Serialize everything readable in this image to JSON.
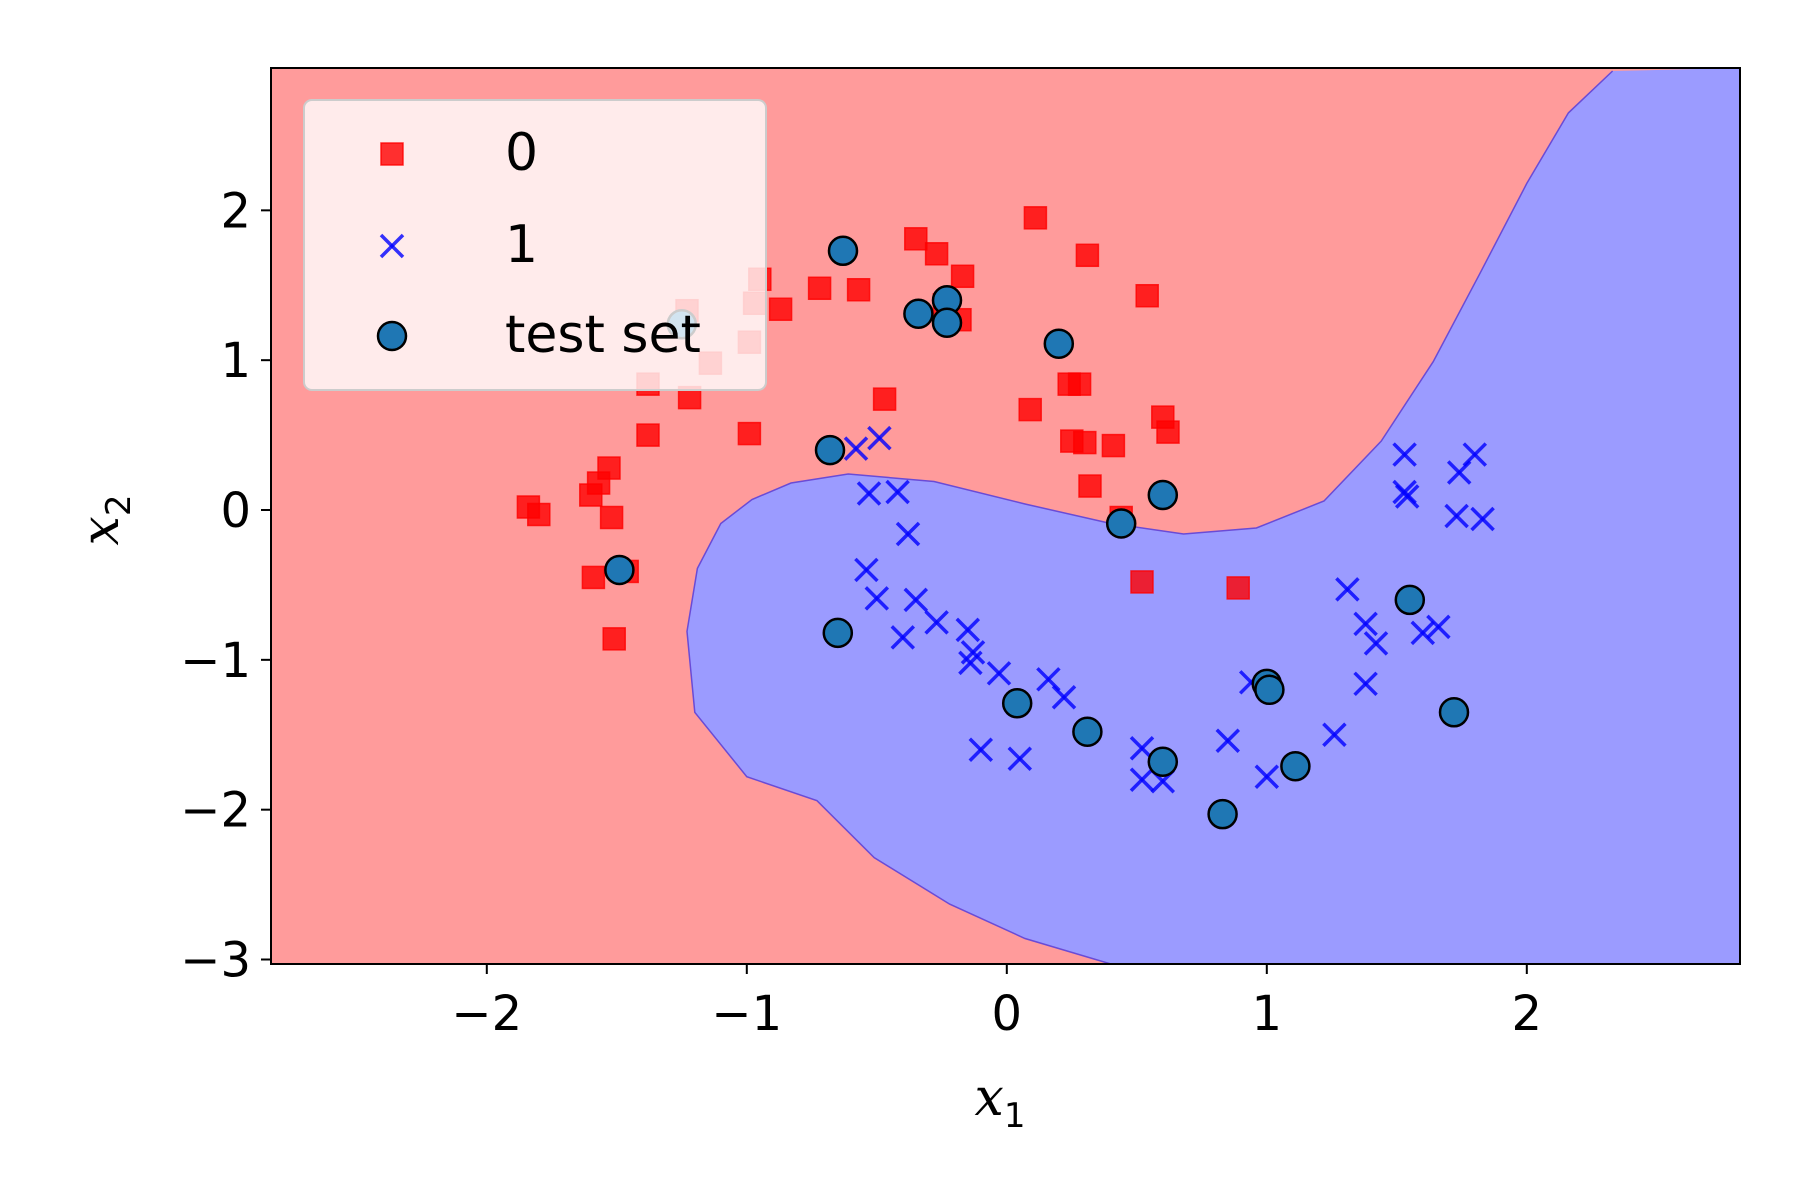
{
  "chart_data": {
    "type": "scatter",
    "title": "",
    "xlabel": "x",
    "xlabel_sub": "1",
    "ylabel": "x",
    "ylabel_sub": "2",
    "xlim": [
      -2.83,
      2.82
    ],
    "ylim": [
      -3.03,
      2.95
    ],
    "xticks": [
      -2,
      -1,
      0,
      1,
      2
    ],
    "yticks": [
      -3,
      -2,
      -1,
      0,
      1,
      2
    ],
    "xtick_labels": [
      "−2",
      "−1",
      "0",
      "1",
      "2"
    ],
    "ytick_labels": [
      "−3",
      "−2",
      "−1",
      "0",
      "1",
      "2"
    ],
    "grid": false,
    "legend_position": "upper-left",
    "decision_regions": [
      {
        "class": "0",
        "color": "#ff9b9b"
      },
      {
        "class": "1",
        "color": "#9b9bff"
      }
    ],
    "decision_boundary": [
      [
        0.4,
        -3.03
      ],
      [
        0.07,
        -2.86
      ],
      [
        -0.22,
        -2.63
      ],
      [
        -0.51,
        -2.32
      ],
      [
        -0.73,
        -1.94
      ],
      [
        -1.0,
        -1.78
      ],
      [
        -1.2,
        -1.35
      ],
      [
        -1.23,
        -0.81
      ],
      [
        -1.19,
        -0.39
      ],
      [
        -1.1,
        -0.09
      ],
      [
        -0.98,
        0.07
      ],
      [
        -0.83,
        0.18
      ],
      [
        -0.61,
        0.24
      ],
      [
        -0.28,
        0.19
      ],
      [
        0.07,
        0.04
      ],
      [
        0.4,
        -0.09
      ],
      [
        0.68,
        -0.16
      ],
      [
        0.96,
        -0.12
      ],
      [
        1.22,
        0.06
      ],
      [
        1.44,
        0.46
      ],
      [
        1.64,
        0.99
      ],
      [
        1.82,
        1.58
      ],
      [
        2.0,
        2.18
      ],
      [
        2.16,
        2.65
      ],
      [
        2.33,
        2.93
      ]
    ],
    "series": [
      {
        "name": "0",
        "marker": "square",
        "color": "#ff0000",
        "points": [
          [
            -1.84,
            0.02
          ],
          [
            -1.8,
            -0.03
          ],
          [
            -1.6,
            0.1
          ],
          [
            -1.57,
            0.18
          ],
          [
            -1.53,
            0.28
          ],
          [
            -1.52,
            -0.05
          ],
          [
            -1.59,
            -0.45
          ],
          [
            -1.46,
            -0.41
          ],
          [
            -1.51,
            -0.86
          ],
          [
            -1.38,
            0.5
          ],
          [
            -1.38,
            0.84
          ],
          [
            -1.22,
            0.75
          ],
          [
            -1.23,
            1.33
          ],
          [
            -1.14,
            0.98
          ],
          [
            -0.99,
            0.51
          ],
          [
            -0.99,
            1.12
          ],
          [
            -0.97,
            1.38
          ],
          [
            -0.95,
            1.54
          ],
          [
            -0.87,
            1.34
          ],
          [
            -0.72,
            1.48
          ],
          [
            -0.57,
            1.47
          ],
          [
            -0.47,
            0.74
          ],
          [
            -0.35,
            1.81
          ],
          [
            -0.27,
            1.71
          ],
          [
            -0.24,
            1.37
          ],
          [
            -0.18,
            1.27
          ],
          [
            -0.17,
            1.56
          ],
          [
            0.11,
            1.95
          ],
          [
            0.31,
            1.7
          ],
          [
            0.09,
            0.67
          ],
          [
            0.24,
            0.84
          ],
          [
            0.28,
            0.84
          ],
          [
            0.25,
            0.46
          ],
          [
            0.3,
            0.45
          ],
          [
            0.32,
            0.16
          ],
          [
            0.41,
            0.43
          ],
          [
            0.54,
            1.43
          ],
          [
            0.6,
            0.62
          ],
          [
            0.62,
            0.52
          ],
          [
            0.52,
            -0.48
          ],
          [
            0.89,
            -0.52
          ],
          [
            0.44,
            -0.05
          ]
        ]
      },
      {
        "name": "1",
        "marker": "x",
        "color": "#0000ff",
        "points": [
          [
            -0.58,
            0.41
          ],
          [
            -0.49,
            0.48
          ],
          [
            -0.53,
            0.11
          ],
          [
            -0.42,
            0.12
          ],
          [
            -0.38,
            -0.16
          ],
          [
            -0.54,
            -0.4
          ],
          [
            -0.5,
            -0.59
          ],
          [
            -0.35,
            -0.6
          ],
          [
            -0.4,
            -0.85
          ],
          [
            -0.27,
            -0.75
          ],
          [
            -0.15,
            -0.8
          ],
          [
            -0.13,
            -0.95
          ],
          [
            -0.14,
            -1.02
          ],
          [
            -0.03,
            -1.09
          ],
          [
            0.16,
            -1.13
          ],
          [
            0.22,
            -1.25
          ],
          [
            -0.1,
            -1.6
          ],
          [
            0.05,
            -1.66
          ],
          [
            0.52,
            -1.59
          ],
          [
            0.52,
            -1.8
          ],
          [
            0.6,
            -1.81
          ],
          [
            0.85,
            -1.54
          ],
          [
            0.94,
            -1.15
          ],
          [
            1.0,
            -1.78
          ],
          [
            1.26,
            -1.5
          ],
          [
            1.31,
            -0.53
          ],
          [
            1.38,
            -0.76
          ],
          [
            1.42,
            -0.89
          ],
          [
            1.38,
            -1.16
          ],
          [
            1.6,
            -0.82
          ],
          [
            1.66,
            -0.78
          ],
          [
            1.53,
            0.37
          ],
          [
            1.53,
            0.12
          ],
          [
            1.54,
            0.09
          ],
          [
            1.74,
            0.25
          ],
          [
            1.8,
            0.37
          ],
          [
            1.73,
            -0.04
          ],
          [
            1.83,
            -0.06
          ]
        ]
      },
      {
        "name": "test set",
        "marker": "circle",
        "color": "#1f77b4",
        "points": [
          [
            -1.25,
            1.24
          ],
          [
            -0.63,
            1.73
          ],
          [
            -0.34,
            1.31
          ],
          [
            -0.23,
            1.4
          ],
          [
            -0.23,
            1.25
          ],
          [
            0.2,
            1.11
          ],
          [
            -0.68,
            0.4
          ],
          [
            0.6,
            0.1
          ],
          [
            0.44,
            -0.09
          ],
          [
            -1.49,
            -0.4
          ],
          [
            -0.65,
            -0.82
          ],
          [
            0.04,
            -1.29
          ],
          [
            0.31,
            -1.48
          ],
          [
            0.6,
            -1.68
          ],
          [
            0.83,
            -2.03
          ],
          [
            1.0,
            -1.16
          ],
          [
            1.01,
            -1.2
          ],
          [
            1.11,
            -1.71
          ],
          [
            1.55,
            -0.6
          ],
          [
            1.72,
            -1.35
          ]
        ]
      }
    ]
  }
}
